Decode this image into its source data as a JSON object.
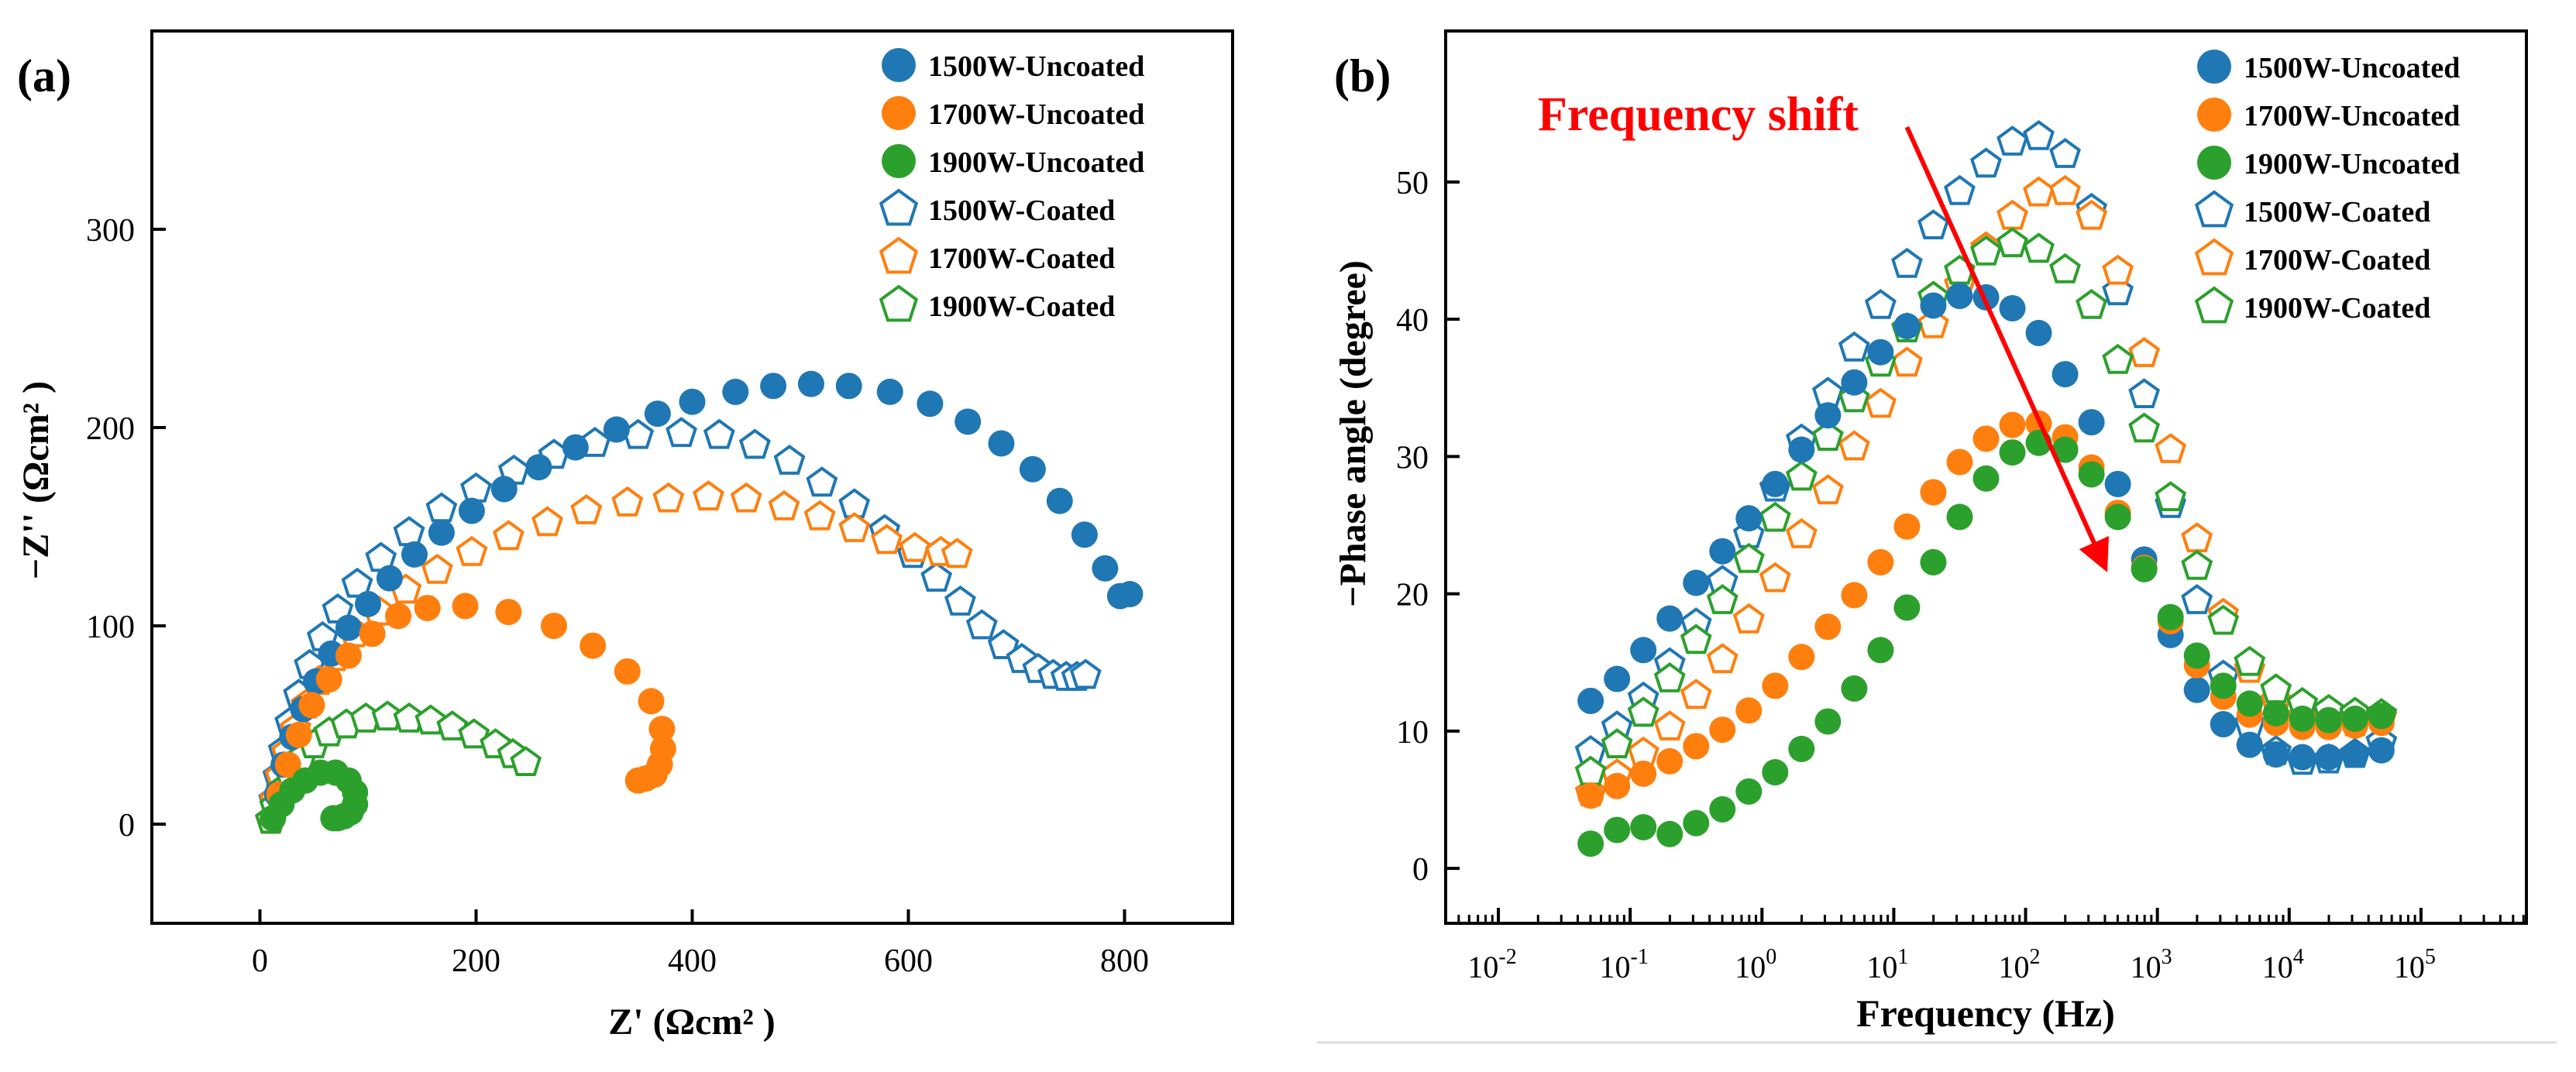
{
  "colors": {
    "blue": "#1f77b4",
    "orange": "#ff7f0e",
    "green": "#2ca02c",
    "annotation": "#ff0000",
    "axis": "#000000"
  },
  "chart_data": [
    {
      "panel_label": "(a)",
      "type": "scatter",
      "title": "",
      "xlabel": "Z' (Ωcm² )",
      "ylabel": "−Z'' (Ωcm² )",
      "xlim": [
        -100,
        900
      ],
      "ylim": [
        -50,
        400
      ],
      "xticks": [
        0,
        200,
        400,
        600,
        800
      ],
      "yticks": [
        0,
        100,
        200,
        300
      ],
      "xtick_labels": [
        "0",
        "200",
        "400",
        "600",
        "800"
      ],
      "ytick_labels": [
        "0",
        "100",
        "200",
        "300"
      ],
      "legend": [
        {
          "label": "1500W-Uncoated",
          "color": "blue",
          "marker": "circle"
        },
        {
          "label": "1700W-Uncoated",
          "color": "orange",
          "marker": "circle"
        },
        {
          "label": "1900W-Uncoated",
          "color": "green",
          "marker": "circle"
        },
        {
          "label": "1500W-Coated",
          "color": "blue",
          "marker": "pentagon"
        },
        {
          "label": "1700W-Coated",
          "color": "orange",
          "marker": "pentagon"
        },
        {
          "label": "1900W-Coated",
          "color": "green",
          "marker": "pentagon"
        }
      ],
      "legend_position": "top-right",
      "series": [
        {
          "name": "1500W-Uncoated",
          "marker": "circle",
          "color": "blue",
          "x": [
            12,
            16,
            22,
            30,
            40,
            52,
            66,
            82,
            100,
            120,
            143,
            168,
            196,
            226,
            258,
            292,
            330,
            368,
            400,
            440,
            475,
            510,
            545,
            583,
            620,
            655,
            686,
            715,
            740,
            763,
            782,
            796,
            805
          ],
          "y": [
            3,
            15,
            30,
            44,
            58,
            72,
            86,
            99,
            111,
            124,
            136,
            147,
            158,
            169,
            180,
            190,
            199,
            207,
            213,
            218,
            221,
            222,
            221,
            218,
            212,
            203,
            192,
            179,
            163,
            146,
            129,
            115,
            116
          ]
        },
        {
          "name": "1700W-Uncoated",
          "marker": "circle",
          "color": "orange",
          "x": [
            12,
            18,
            26,
            36,
            48,
            64,
            82,
            104,
            128,
            155,
            190,
            230,
            272,
            308,
            340,
            362,
            372,
            373,
            370,
            365,
            357,
            350
          ],
          "y": [
            3,
            15,
            30,
            45,
            60,
            73,
            85,
            96,
            105,
            109,
            110,
            107,
            100,
            90,
            77,
            62,
            48,
            38,
            30,
            25,
            23,
            22
          ]
        },
        {
          "name": "1900W-Uncoated",
          "marker": "circle",
          "color": "green",
          "x": [
            12,
            20,
            30,
            42,
            56,
            70,
            82,
            88,
            88,
            84,
            78,
            72,
            68
          ],
          "y": [
            3,
            10,
            17,
            22,
            26,
            26,
            22,
            16,
            10,
            6,
            4,
            3,
            3
          ]
        },
        {
          "name": "1500W-Coated",
          "marker": "pentagon",
          "color": "blue",
          "x": [
            10,
            13,
            17,
            22,
            28,
            36,
            46,
            58,
            72,
            90,
            112,
            138,
            168,
            200,
            235,
            272,
            310,
            350,
            390,
            425,
            458,
            490,
            520,
            550,
            578,
            604,
            626,
            648,
            668,
            688,
            705,
            720,
            734,
            746,
            756,
            764
          ],
          "y": [
            2,
            12,
            24,
            37,
            51,
            65,
            80,
            94,
            108,
            121,
            134,
            147,
            159,
            169,
            178,
            186,
            192,
            196,
            197,
            196,
            191,
            183,
            172,
            161,
            148,
            136,
            124,
            112,
            100,
            90,
            83,
            78,
            75,
            74,
            74,
            75
          ]
        },
        {
          "name": "1700W-Coated",
          "marker": "pentagon",
          "color": "orange",
          "x": [
            10,
            14,
            19,
            25,
            33,
            43,
            55,
            70,
            88,
            110,
            135,
            164,
            196,
            230,
            266,
            302,
            340,
            378,
            415,
            450,
            485,
            518,
            550,
            580,
            606,
            630,
            645
          ],
          "y": [
            2,
            12,
            24,
            36,
            48,
            60,
            72,
            84,
            96,
            107,
            118,
            128,
            137,
            145,
            152,
            158,
            162,
            164,
            165,
            164,
            160,
            155,
            149,
            143,
            139,
            137,
            136
          ]
        },
        {
          "name": "1900W-Coated",
          "marker": "pentagon",
          "color": "green",
          "x": [
            10,
            14,
            20,
            28,
            38,
            50,
            64,
            80,
            98,
            118,
            138,
            158,
            178,
            198,
            218,
            234,
            246
          ],
          "y": [
            2,
            9,
            17,
            25,
            33,
            40,
            46,
            50,
            53,
            54,
            53,
            52,
            49,
            45,
            40,
            35,
            31
          ]
        }
      ]
    },
    {
      "panel_label": "(b)",
      "type": "scatter",
      "title": "",
      "xlabel": "Frequency (Hz)",
      "ylabel": "−Phase angle (degree)",
      "xscale": "log",
      "xlim_exp": [
        -2.4,
        5.8
      ],
      "ylim": [
        -4,
        61
      ],
      "x_tick_exponents": [
        -2,
        -1,
        0,
        1,
        2,
        3,
        4,
        5
      ],
      "x_tick_base": "10",
      "yticks": [
        0,
        10,
        20,
        30,
        40,
        50
      ],
      "ytick_labels": [
        "0",
        "10",
        "20",
        "30",
        "40",
        "50"
      ],
      "annotation": {
        "text": "Frequency shift",
        "arrow_from": [
          1.1,
          54
        ],
        "arrow_to": [
          2.6,
          22
        ]
      },
      "legend": [
        {
          "label": "1500W-Uncoated",
          "color": "blue",
          "marker": "circle"
        },
        {
          "label": "1700W-Uncoated",
          "color": "orange",
          "marker": "circle"
        },
        {
          "label": "1900W-Uncoated",
          "color": "green",
          "marker": "circle"
        },
        {
          "label": "1500W-Coated",
          "color": "blue",
          "marker": "pentagon"
        },
        {
          "label": "1700W-Coated",
          "color": "orange",
          "marker": "pentagon"
        },
        {
          "label": "1900W-Coated",
          "color": "green",
          "marker": "pentagon"
        }
      ],
      "legend_position": "top-right",
      "x_log10": [
        -1.3,
        -1.1,
        -0.9,
        -0.7,
        -0.5,
        -0.3,
        -0.1,
        0.1,
        0.3,
        0.5,
        0.7,
        0.9,
        1.1,
        1.3,
        1.5,
        1.7,
        1.9,
        2.1,
        2.3,
        2.5,
        2.7,
        2.9,
        3.1,
        3.3,
        3.5,
        3.7,
        3.9,
        4.1,
        4.3,
        4.5,
        4.7
      ],
      "series": [
        {
          "name": "1500W-Uncoated",
          "marker": "circle",
          "color": "blue",
          "y": [
            12.2,
            13.8,
            15.9,
            18.2,
            20.8,
            23.1,
            25.5,
            28.0,
            30.5,
            33.0,
            35.4,
            37.6,
            39.5,
            41.0,
            41.7,
            41.6,
            40.8,
            39.0,
            36.0,
            32.5,
            28.0,
            22.5,
            17.0,
            13.0,
            10.5,
            9.0,
            8.3,
            8.1,
            8.1,
            8.3,
            8.6
          ]
        },
        {
          "name": "1700W-Uncoated",
          "marker": "circle",
          "color": "orange",
          "y": [
            5.3,
            6.0,
            6.9,
            7.8,
            8.9,
            10.1,
            11.5,
            13.3,
            15.4,
            17.6,
            19.9,
            22.3,
            24.9,
            27.4,
            29.6,
            31.3,
            32.3,
            32.4,
            31.4,
            29.2,
            25.9,
            21.9,
            18.0,
            14.8,
            12.5,
            11.2,
            10.6,
            10.3,
            10.3,
            10.4,
            10.6
          ]
        },
        {
          "name": "1900W-Uncoated",
          "marker": "circle",
          "color": "green",
          "y": [
            1.8,
            2.8,
            3.0,
            2.5,
            3.3,
            4.3,
            5.6,
            7.0,
            8.7,
            10.7,
            13.1,
            15.9,
            19.0,
            22.3,
            25.6,
            28.4,
            30.3,
            31.0,
            30.5,
            28.7,
            25.6,
            21.8,
            18.3,
            15.5,
            13.3,
            12.0,
            11.3,
            10.9,
            10.8,
            10.9,
            11.1
          ]
        },
        {
          "name": "1500W-Coated",
          "marker": "pentagon",
          "color": "blue",
          "y": [
            8.5,
            10.3,
            12.4,
            14.9,
            17.8,
            20.9,
            24.3,
            27.7,
            31.2,
            34.6,
            37.9,
            41.0,
            44.0,
            46.8,
            49.3,
            51.3,
            52.9,
            53.3,
            52.0,
            48.0,
            42.0,
            34.5,
            26.5,
            19.5,
            14.0,
            10.5,
            8.5,
            7.8,
            7.9,
            8.3,
            9.2
          ]
        },
        {
          "name": "1700W-Coated",
          "marker": "pentagon",
          "color": "orange",
          "y": [
            5.5,
            6.8,
            8.4,
            10.3,
            12.6,
            15.2,
            18.1,
            21.1,
            24.3,
            27.5,
            30.7,
            33.8,
            36.8,
            39.6,
            42.5,
            45.2,
            47.5,
            49.2,
            49.3,
            47.5,
            43.5,
            37.5,
            30.5,
            24.0,
            18.5,
            14.5,
            12.2,
            11.0,
            10.6,
            10.6,
            11.0
          ]
        },
        {
          "name": "1900W-Coated",
          "marker": "pentagon",
          "color": "green",
          "y": [
            7.0,
            9.0,
            11.3,
            13.8,
            16.6,
            19.5,
            22.5,
            25.5,
            28.5,
            31.4,
            34.2,
            36.8,
            39.3,
            41.6,
            43.5,
            44.9,
            45.5,
            45.1,
            43.6,
            41.0,
            37.0,
            32.0,
            27.0,
            22.0,
            18.0,
            15.0,
            13.0,
            12.0,
            11.5,
            11.3,
            11.2
          ]
        }
      ]
    }
  ]
}
